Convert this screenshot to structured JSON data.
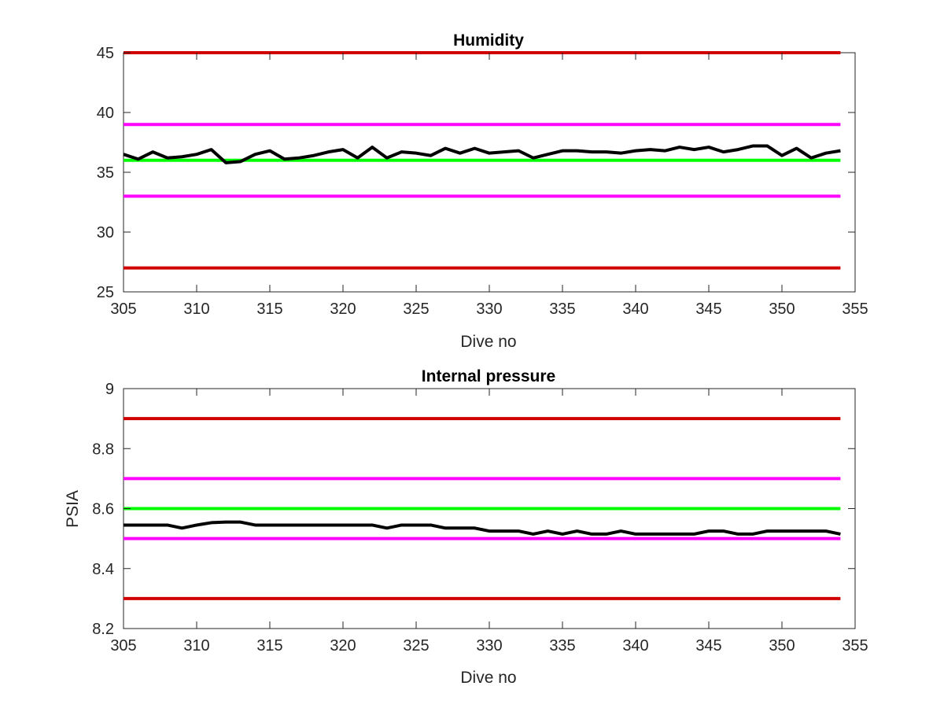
{
  "chart_data": [
    {
      "type": "line",
      "title": "Humidity",
      "xlabel": "Dive no",
      "ylabel": "",
      "xlim": [
        305,
        355
      ],
      "ylim": [
        25,
        45
      ],
      "xticks": [
        "305",
        "310",
        "315",
        "320",
        "325",
        "330",
        "335",
        "340",
        "345",
        "350",
        "355"
      ],
      "yticks": [
        "25",
        "30",
        "35",
        "40",
        "45"
      ],
      "grid": false,
      "reference_lines": [
        {
          "y": 45,
          "color": "#d10000"
        },
        {
          "y": 39,
          "color": "#ff00ff"
        },
        {
          "y": 36,
          "color": "#00ff00"
        },
        {
          "y": 33,
          "color": "#ff00ff"
        },
        {
          "y": 27,
          "color": "#d10000"
        }
      ],
      "series": [
        {
          "color": "#000000",
          "x": [
            305,
            306,
            307,
            308,
            309,
            310,
            311,
            312,
            313,
            314,
            315,
            316,
            317,
            318,
            319,
            320,
            321,
            322,
            323,
            324,
            325,
            326,
            327,
            328,
            329,
            330,
            331,
            332,
            333,
            334,
            335,
            336,
            337,
            338,
            339,
            340,
            341,
            342,
            343,
            344,
            345,
            346,
            347,
            348,
            349,
            350,
            351,
            352,
            353,
            354
          ],
          "y": [
            36.5,
            36.1,
            36.7,
            36.2,
            36.3,
            36.5,
            36.9,
            35.8,
            35.9,
            36.5,
            36.8,
            36.1,
            36.2,
            36.4,
            36.7,
            36.9,
            36.2,
            37.1,
            36.2,
            36.7,
            36.6,
            36.4,
            37.0,
            36.6,
            37.0,
            36.6,
            36.7,
            36.8,
            36.2,
            36.5,
            36.8,
            36.8,
            36.7,
            36.7,
            36.6,
            36.8,
            36.9,
            36.8,
            37.1,
            36.9,
            37.1,
            36.7,
            36.9,
            37.2,
            37.2,
            36.4,
            37.0,
            36.2,
            36.6,
            36.8
          ]
        }
      ]
    },
    {
      "type": "line",
      "title": "Internal pressure",
      "xlabel": "Dive no",
      "ylabel": "PSIA",
      "xlim": [
        305,
        355
      ],
      "ylim": [
        8.2,
        9
      ],
      "xticks": [
        "305",
        "310",
        "315",
        "320",
        "325",
        "330",
        "335",
        "340",
        "345",
        "350",
        "355"
      ],
      "yticks": [
        "8.2",
        "8.4",
        "8.6",
        "8.8",
        "9"
      ],
      "grid": false,
      "reference_lines": [
        {
          "y": 8.9,
          "color": "#d10000"
        },
        {
          "y": 8.7,
          "color": "#ff00ff"
        },
        {
          "y": 8.6,
          "color": "#00ff00"
        },
        {
          "y": 8.5,
          "color": "#ff00ff"
        },
        {
          "y": 8.3,
          "color": "#d10000"
        }
      ],
      "series": [
        {
          "color": "#000000",
          "x": [
            305,
            306,
            307,
            308,
            309,
            310,
            311,
            312,
            313,
            314,
            315,
            316,
            317,
            318,
            319,
            320,
            321,
            322,
            323,
            324,
            325,
            326,
            327,
            328,
            329,
            330,
            331,
            332,
            333,
            334,
            335,
            336,
            337,
            338,
            339,
            340,
            341,
            342,
            343,
            344,
            345,
            346,
            347,
            348,
            349,
            350,
            351,
            352,
            353,
            354
          ],
          "y": [
            8.545,
            8.545,
            8.545,
            8.545,
            8.535,
            8.545,
            8.553,
            8.555,
            8.555,
            8.545,
            8.545,
            8.545,
            8.545,
            8.545,
            8.545,
            8.545,
            8.545,
            8.545,
            8.535,
            8.545,
            8.545,
            8.545,
            8.535,
            8.535,
            8.535,
            8.525,
            8.525,
            8.525,
            8.515,
            8.525,
            8.515,
            8.525,
            8.515,
            8.515,
            8.525,
            8.515,
            8.515,
            8.515,
            8.515,
            8.515,
            8.525,
            8.525,
            8.515,
            8.515,
            8.525,
            8.525,
            8.525,
            8.525,
            8.525,
            8.515
          ]
        }
      ]
    }
  ]
}
